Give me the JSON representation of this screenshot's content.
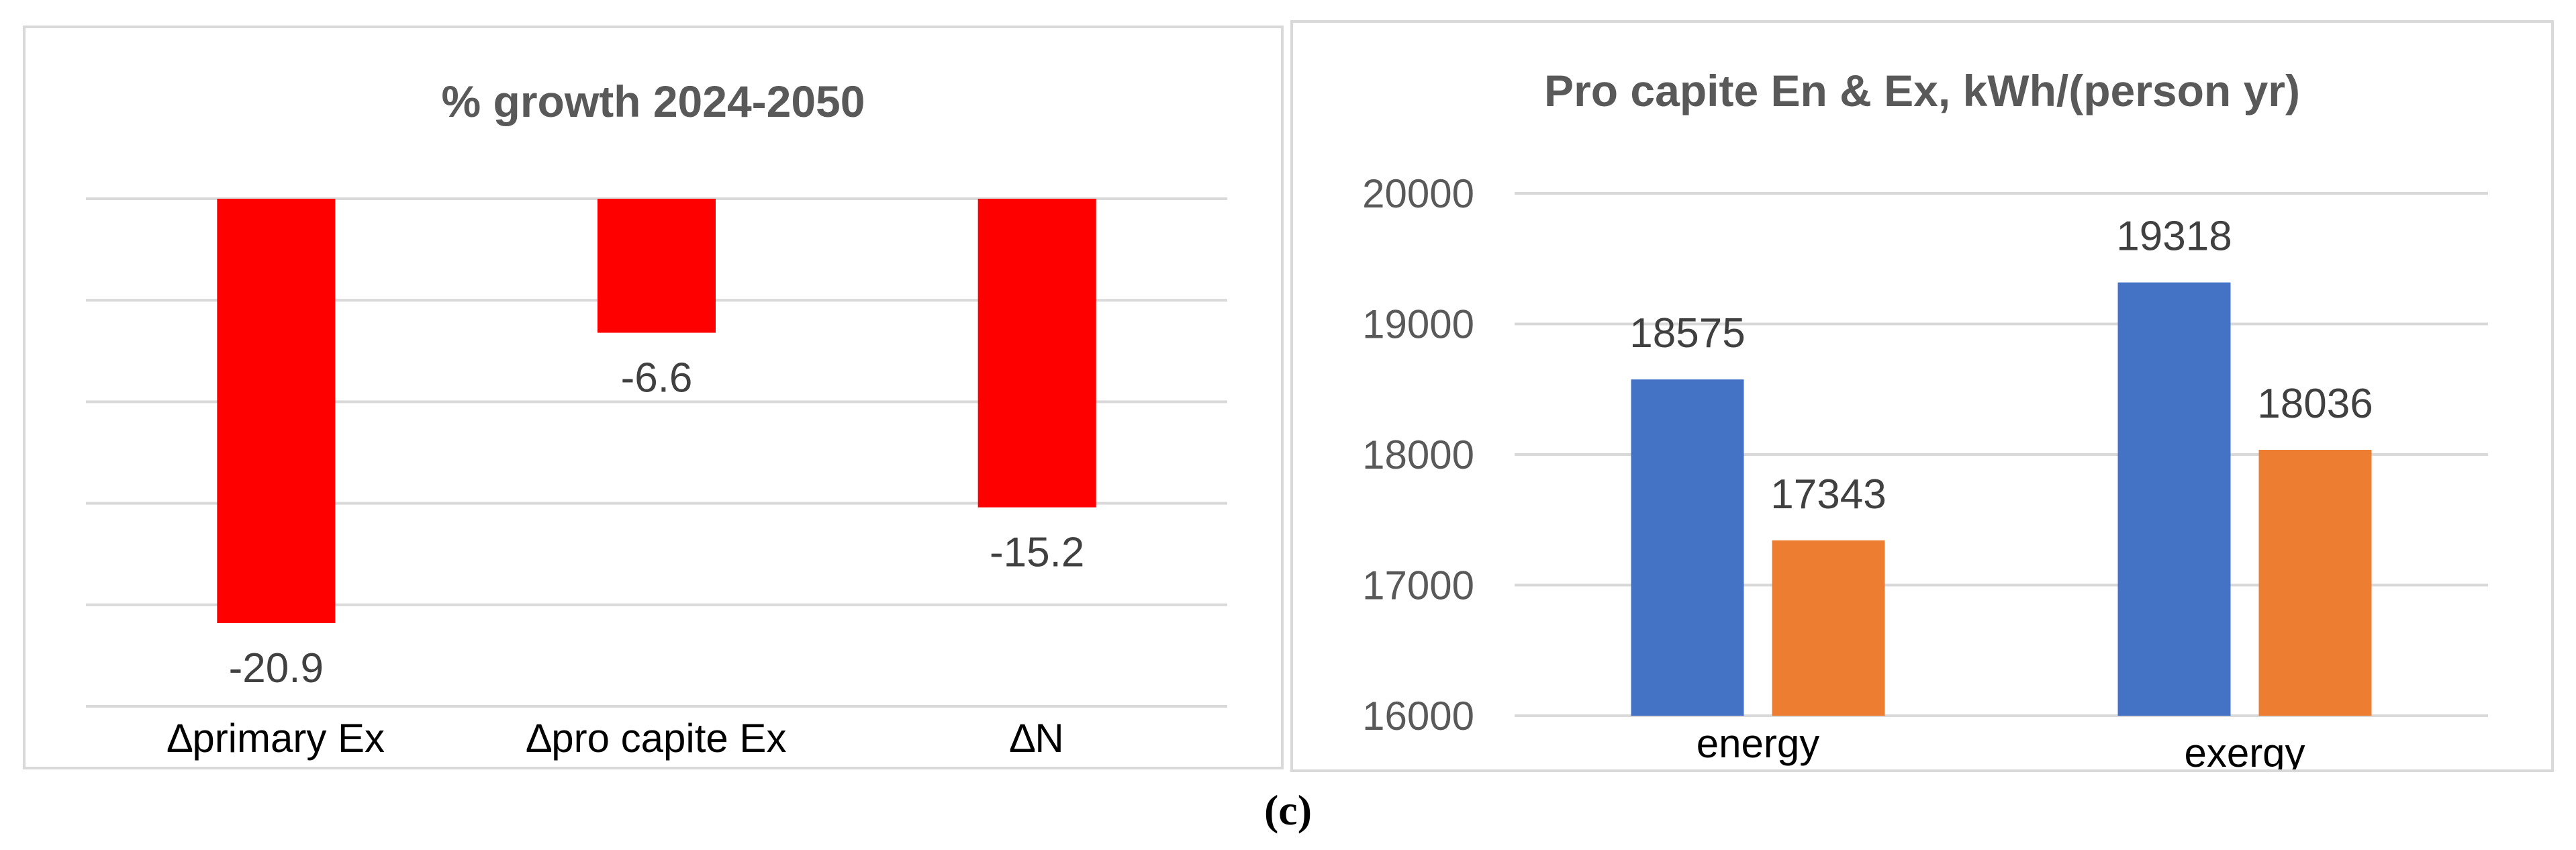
{
  "chart_data": [
    {
      "type": "bar",
      "title": "% growth 2024-2050",
      "categories": [
        "∆primary Ex",
        "∆pro capite Ex",
        "∆N"
      ],
      "values": [
        -20.9,
        -6.6,
        -15.2
      ],
      "value_labels": [
        "-20.9",
        "-6.6",
        "-15.2"
      ],
      "ylim": [
        -25,
        0
      ],
      "grid": true,
      "legend": "none",
      "colors": [
        "#ff0000"
      ]
    },
    {
      "type": "bar",
      "title": "Pro capite En & Ex, kWh/(person yr)",
      "categories": [
        "energy",
        "exergy"
      ],
      "series": [
        {
          "values": [
            18575,
            19318
          ],
          "value_labels": [
            "18575",
            "19318"
          ],
          "color": "#4472c4"
        },
        {
          "values": [
            17343,
            18036
          ],
          "value_labels": [
            "17343",
            "18036"
          ],
          "color": "#ed7d31"
        }
      ],
      "ylim": [
        16000,
        20000
      ],
      "yticks": [
        16000,
        17000,
        18000,
        19000,
        20000
      ],
      "ytick_labels": [
        "16000",
        "17000",
        "18000",
        "19000",
        "20000"
      ],
      "grid": true,
      "legend": "none"
    }
  ],
  "caption": "(c)"
}
